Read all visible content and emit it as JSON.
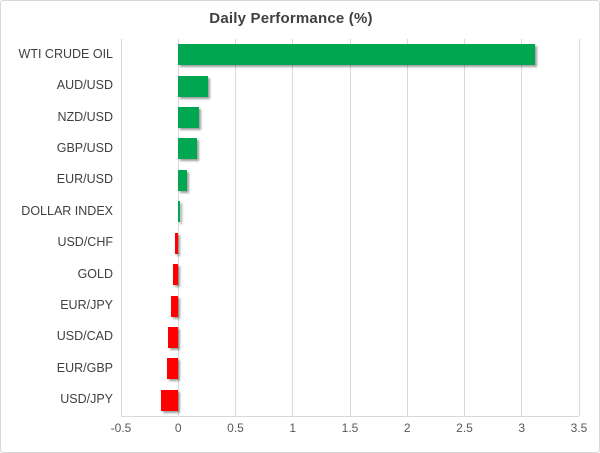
{
  "chart_data": {
    "type": "bar",
    "orientation": "horizontal",
    "title": "Daily Performance (%)",
    "categories": [
      "WTI CRUDE OIL",
      "AUD/USD",
      "NZD/USD",
      "GBP/USD",
      "EUR/USD",
      "DOLLAR INDEX",
      "USD/CHF",
      "GOLD",
      "EUR/JPY",
      "USD/CAD",
      "EUR/GBP",
      "USD/JPY"
    ],
    "values": [
      3.12,
      0.26,
      0.18,
      0.16,
      0.08,
      0.01,
      -0.03,
      -0.05,
      -0.06,
      -0.09,
      -0.1,
      -0.15
    ],
    "xlim": [
      -0.5,
      3.5
    ],
    "x_ticks": [
      -0.5,
      0,
      0.5,
      1,
      1.5,
      2,
      2.5,
      3,
      3.5
    ],
    "x_tick_labels": [
      "-0.5",
      "0",
      "0.5",
      "1",
      "1.5",
      "2",
      "2.5",
      "3",
      "3.5"
    ],
    "xlabel": "",
    "ylabel": "",
    "grid": true,
    "legend": false,
    "colors": {
      "positive": "#00A650",
      "negative": "#FF0000",
      "gridline": "#D9D9D9",
      "title": "#404040",
      "category_label": "#404040",
      "tick_label": "#595959"
    }
  }
}
